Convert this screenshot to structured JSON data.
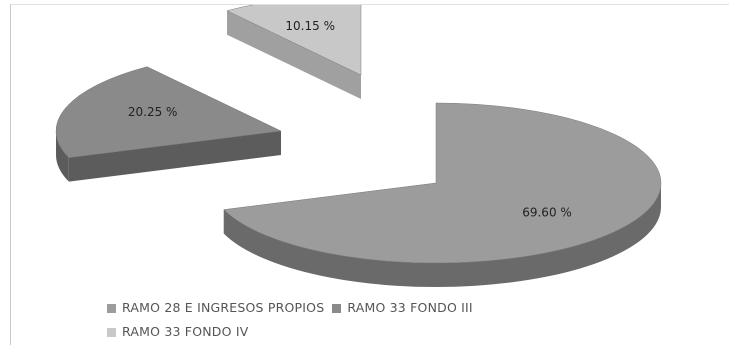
{
  "chart_data": {
    "type": "pie",
    "style": "3d-exploded",
    "categories": [
      "RAMO 28 E INGRESOS PROPIOS",
      "RAMO 33 FONDO III",
      "RAMO 33 FONDO IV"
    ],
    "values": [
      69.6,
      20.25,
      10.15
    ],
    "data_labels": [
      "69.60 %",
      "20.25 %",
      "10.15 %"
    ],
    "colors": [
      "#9c9c9c",
      "#8a8a8a",
      "#c8c8c8"
    ],
    "side_colors": [
      "#6a6a6a",
      "#5c5c5c",
      "#a0a0a0"
    ],
    "title": "",
    "legend": {
      "placement": "bottom"
    }
  }
}
